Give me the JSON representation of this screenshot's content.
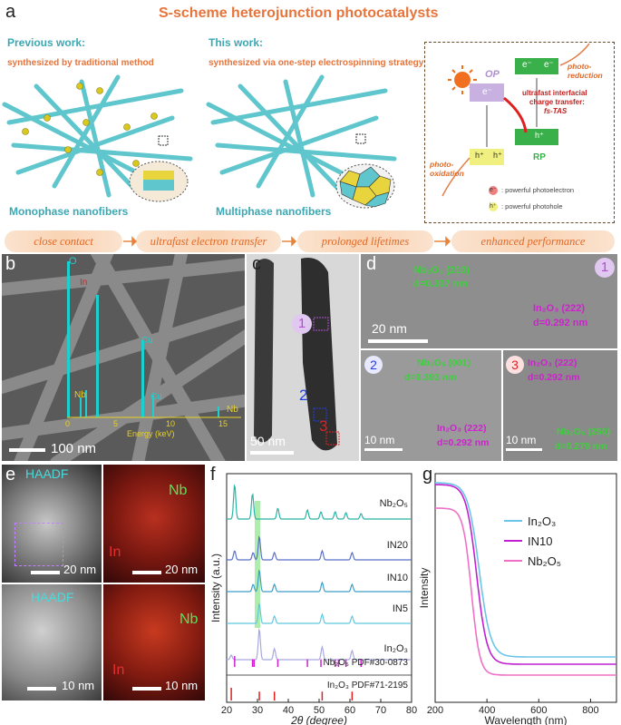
{
  "panel_a": {
    "label": "a",
    "title": "S-scheme heterojunction photocatalysts",
    "previous_heading": "Previous work:",
    "previous_sub": "synthesized by traditional method",
    "this_heading": "This work:",
    "this_sub": "synthesized via one-step electrospinning strategy",
    "mono_label": "Monophase nanofibers",
    "multi_label": "Multiphase nanofibers",
    "op": "OP",
    "rp": "RP",
    "e": "e⁻",
    "h": "h⁺",
    "photo_reduction": "photo-reduction",
    "photo_oxidation": "photo-oxidation",
    "charge_transfer_1": "ultrafast interfacial",
    "charge_transfer_2": "charge transfer:",
    "fs_tas": "fs-TAS",
    "legend_e": ": powerful photoelectron",
    "legend_h": ": powerful photohole",
    "flow": [
      "close contact",
      "ultrafast electron transfer",
      "prolonged lifetimes",
      "enhanced performance"
    ]
  },
  "panel_b": {
    "label": "b",
    "scale": "100 nm",
    "eds_x_label": "Energy (keV)",
    "eds_ticks": [
      "0",
      "5",
      "10",
      "15"
    ],
    "peaks": [
      "O",
      "In",
      "Nb",
      "Cu",
      "Cu",
      "Nb"
    ]
  },
  "panel_c": {
    "label": "c",
    "scale": "50 nm",
    "markers": [
      "1",
      "2",
      "3"
    ]
  },
  "panel_d": {
    "label": "d",
    "d1_nb": "Nb₂O₅ (210)",
    "d1_nb_d": "d=0.307 nm",
    "d1_in": "In₂O₃ (222)",
    "d1_in_d": "d=0.292 nm",
    "d1_scale": "20 nm",
    "d2_nb": "Nb₂O₅ (001)",
    "d2_nb_d": "d=0.393 nm",
    "d2_in": "In₂O₃ (222)",
    "d2_in_d": "d=0.292 nm",
    "d2_scale": "10 nm",
    "d3_in": "In₂O₃ (222)",
    "d3_in_d": "d=0.292 nm",
    "d3_nb": "Nb₂O₅ (250)",
    "d3_nb_d": "d=0.279 nm",
    "d3_scale": "10 nm",
    "markers": [
      "1",
      "2",
      "3"
    ]
  },
  "panel_e": {
    "label": "e",
    "haadf": "HAADF",
    "nb": "Nb",
    "in": "In",
    "scale_top": "20 nm",
    "scale_bottom": "10 nm"
  },
  "colors": {
    "title_orange": "#e8743b",
    "teal": "#3ba8b5",
    "nb_green": "#3bd13b",
    "in_magenta": "#d020d0"
  },
  "chart_data": [
    {
      "type": "line",
      "panel": "f",
      "xlabel": "2θ (degree)",
      "ylabel": "Intensity (a.u.)",
      "xlim": [
        20,
        80
      ],
      "x_ticks": [
        20,
        30,
        40,
        50,
        60,
        70,
        80
      ],
      "series": [
        {
          "name": "Nb₂O₅",
          "color": "#2ab5a5"
        },
        {
          "name": "IN20",
          "color": "#5b6fc9"
        },
        {
          "name": "IN10",
          "color": "#3d9ec8"
        },
        {
          "name": "IN5",
          "color": "#5fc8e0"
        },
        {
          "name": "In₂O₃",
          "color": "#a8a8e0"
        }
      ],
      "references": [
        {
          "name": "Nb₂O₅ PDF#30-0873",
          "color": "#d020d0",
          "peaks": [
            22.6,
            28.4,
            28.9,
            36.6,
            46.2,
            50.6,
            55.2,
            56.3,
            58.7,
            63.6
          ]
        },
        {
          "name": "In₂O₃ PDF#71-2195",
          "color": "#e02020",
          "peaks": [
            21.5,
            30.6,
            35.5,
            51.0,
            60.7
          ]
        }
      ],
      "highlight_2theta": 30
    },
    {
      "type": "line",
      "panel": "g",
      "xlabel": "Wavelength (nm)",
      "ylabel": "Intensity",
      "xlim": [
        200,
        900
      ],
      "x_ticks": [
        200,
        400,
        600,
        800
      ],
      "series": [
        {
          "name": "In₂O₃",
          "color": "#6cc5e8"
        },
        {
          "name": "IN10",
          "color": "#c020d0"
        },
        {
          "name": "Nb₂O₅",
          "color": "#f070c8"
        }
      ]
    }
  ]
}
